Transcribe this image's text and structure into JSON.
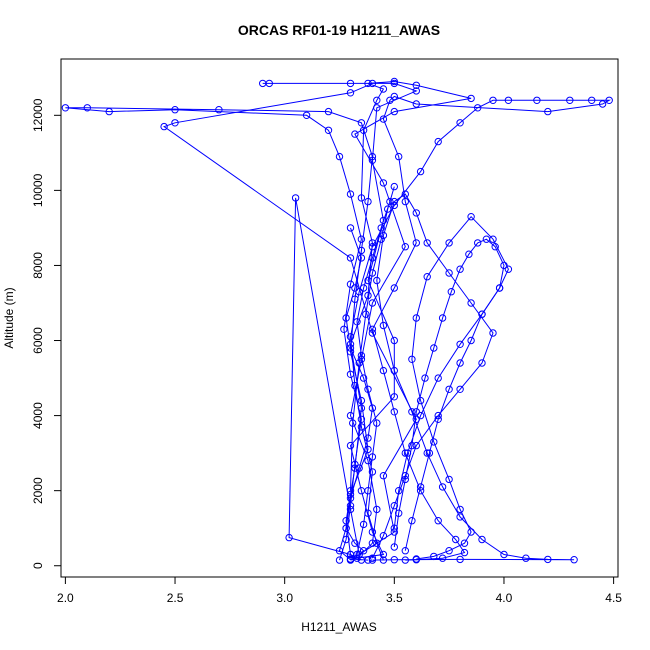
{
  "chart_data": {
    "type": "line",
    "title": "ORCAS RF01-19 H1211_AWAS",
    "xlabel": "H1211_AWAS",
    "ylabel": "Altitude (m)",
    "xlim": [
      1.98,
      4.52
    ],
    "ylim": [
      -300,
      13500
    ],
    "xticks": [
      2.0,
      2.5,
      3.0,
      3.5,
      4.0,
      4.5
    ],
    "xtick_labels": [
      "2.0",
      "2.5",
      "3.0",
      "3.5",
      "4.0",
      "4.5"
    ],
    "yticks": [
      0,
      2000,
      4000,
      6000,
      8000,
      10000,
      12000
    ],
    "ytick_labels": [
      "0",
      "2000",
      "4000",
      "6000",
      "8000",
      "10000",
      "12000"
    ],
    "grid": false,
    "series": [
      {
        "color": "#0000ff",
        "marker": "open-circle",
        "x": [
          3.3,
          3.28,
          3.32,
          3.35,
          3.3,
          3.38,
          3.4,
          3.35,
          3.36,
          3.42,
          3.45,
          3.38,
          3.5,
          3.6,
          3.85,
          3.5,
          3.32,
          3.45,
          3.55,
          3.4,
          3.35,
          3.3,
          3.38,
          3.42,
          3.4,
          3.33,
          3.3,
          3.5,
          3.45,
          3.6,
          3.4,
          3.3,
          2.45,
          2.5,
          3.3,
          3.4,
          3.3,
          2.9,
          2.93,
          3.5,
          3.6,
          3.42,
          3.4,
          3.45,
          3.38,
          3.5,
          3.5,
          3.3,
          3.35,
          3.4,
          3.45,
          3.3,
          3.38
        ],
        "y": [
          300,
          1200,
          2600,
          4200,
          5900,
          7200,
          8600,
          9800,
          11600,
          12400,
          12700,
          12850,
          12900,
          12800,
          12450,
          12100,
          11500,
          10200,
          8500,
          7000,
          5500,
          4000,
          2800,
          1500,
          600,
          200,
          150,
          900,
          2400,
          3900,
          6200,
          8200,
          11700,
          11800,
          12600,
          12850,
          12850,
          12850,
          12850,
          12850,
          12650,
          12200,
          10800,
          9200,
          7600,
          6000,
          4500,
          3200,
          2000,
          900,
          300,
          180,
          150
        ]
      },
      {
        "color": "#0000ff",
        "marker": "open-circle",
        "x": [
          3.45,
          3.42,
          3.38,
          3.4,
          3.35,
          3.32,
          3.3,
          3.34,
          3.4,
          3.5,
          3.62,
          3.7,
          3.8,
          3.88,
          3.95,
          4.02,
          4.15,
          4.3,
          4.4,
          4.48,
          4.45,
          4.2,
          3.6,
          3.5,
          3.48,
          3.45,
          3.52,
          3.55,
          3.6,
          3.5,
          3.4,
          3.45,
          3.5,
          3.55,
          3.62,
          3.7,
          3.78,
          3.82,
          3.72,
          3.6,
          3.55
        ],
        "y": [
          150,
          600,
          1400,
          2500,
          3700,
          4800,
          6100,
          7300,
          8500,
          9600,
          10500,
          11300,
          11800,
          12200,
          12400,
          12400,
          12400,
          12400,
          12400,
          12400,
          12300,
          12100,
          12300,
          12500,
          12400,
          11900,
          10900,
          9700,
          8600,
          7400,
          6300,
          5200,
          4100,
          3000,
          2000,
          1200,
          700,
          350,
          200,
          160,
          150
        ]
      },
      {
        "color": "#0000ff",
        "marker": "open-circle",
        "x": [
          3.25,
          3.28,
          3.3,
          3.32,
          3.35,
          3.3,
          3.27,
          3.3,
          3.35,
          3.3,
          3.25,
          3.2,
          3.1,
          2.5,
          2.2,
          2.0,
          2.1,
          2.7,
          3.2,
          3.35,
          3.4,
          3.38,
          3.35,
          3.32,
          3.3,
          3.35,
          3.38,
          3.3,
          3.28,
          3.25,
          3.3
        ],
        "y": [
          150,
          700,
          1600,
          2700,
          3900,
          5100,
          6300,
          7500,
          8700,
          9900,
          10900,
          11600,
          12000,
          12150,
          12100,
          12200,
          12200,
          12150,
          12100,
          11800,
          10900,
          9700,
          8400,
          7100,
          5700,
          4400,
          3100,
          1900,
          1000,
          400,
          160
        ]
      },
      {
        "color": "#0000ff",
        "marker": "open-circle",
        "x": [
          3.4,
          3.45,
          3.5,
          3.55,
          3.6,
          3.7,
          3.8,
          3.9,
          3.95,
          3.85,
          3.75,
          3.65,
          3.6,
          3.55,
          3.5,
          3.45,
          3.42,
          3.45,
          3.5,
          3.58,
          3.65,
          3.72,
          3.8,
          3.9,
          4.0,
          4.1,
          4.2,
          4.32,
          3.8,
          3.5,
          3.4
        ],
        "y": [
          200,
          800,
          1600,
          2400,
          3200,
          4000,
          4700,
          5400,
          6200,
          7000,
          7800,
          8600,
          9400,
          9900,
          9700,
          8800,
          7600,
          6400,
          5200,
          4100,
          3000,
          2100,
          1300,
          700,
          300,
          200,
          170,
          160,
          170,
          160,
          150
        ]
      },
      {
        "color": "#0000ff",
        "marker": "open-circle",
        "x": [
          3.33,
          3.36,
          3.38,
          3.4,
          3.42,
          3.38,
          3.35,
          3.33,
          3.36,
          3.4,
          3.44,
          3.48,
          3.5,
          3.47,
          3.44,
          3.4,
          3.37,
          3.34,
          3.31,
          3.3
        ],
        "y": [
          300,
          1100,
          2000,
          2900,
          3800,
          4700,
          5600,
          6500,
          7400,
          8200,
          9000,
          9700,
          10100,
          9500,
          8700,
          7800,
          6700,
          5400,
          3800,
          2000
        ]
      },
      {
        "color": "#0000ff",
        "marker": "open-circle",
        "x": [
          3.55,
          3.58,
          3.62,
          3.66,
          3.7,
          3.75,
          3.8,
          3.85,
          3.9,
          3.98,
          4.02,
          3.95,
          3.85,
          3.75,
          3.65,
          3.6,
          3.58,
          3.62,
          3.68,
          3.75,
          3.8,
          3.85,
          3.82,
          3.75,
          3.68,
          3.6
        ],
        "y": [
          400,
          1200,
          2100,
          3000,
          3900,
          4700,
          5400,
          6000,
          6700,
          7400,
          7900,
          8700,
          9300,
          8600,
          7700,
          6600,
          5500,
          4400,
          3300,
          2300,
          1500,
          900,
          600,
          400,
          250,
          180
        ]
      },
      {
        "color": "#0000ff",
        "marker": "open-circle",
        "x": [
          3.3,
          3.35,
          3.32,
          3.28,
          3.3,
          3.36,
          3.4,
          3.38,
          3.34,
          3.3,
          3.28,
          3.32,
          3.36,
          3.34,
          3.3,
          3.05,
          3.02,
          3.3,
          3.35
        ],
        "y": [
          9000,
          8200,
          7400,
          6600,
          5800,
          5000,
          4200,
          3400,
          2600,
          1800,
          1000,
          600,
          400,
          300,
          1500,
          9800,
          750,
          300,
          150
        ]
      },
      {
        "color": "#0000ff",
        "marker": "open-circle",
        "x": [
          3.5,
          3.52,
          3.55,
          3.58,
          3.6,
          3.64,
          3.68,
          3.72,
          3.76,
          3.8,
          3.84,
          3.88,
          3.92,
          3.96,
          4.0,
          3.98,
          3.9,
          3.8,
          3.7,
          3.62,
          3.56,
          3.52,
          3.5
        ],
        "y": [
          500,
          1400,
          2300,
          3200,
          4100,
          5000,
          5800,
          6600,
          7300,
          7900,
          8300,
          8600,
          8700,
          8500,
          8000,
          7400,
          6700,
          5900,
          5000,
          4000,
          3000,
          2000,
          1000
        ]
      }
    ]
  }
}
